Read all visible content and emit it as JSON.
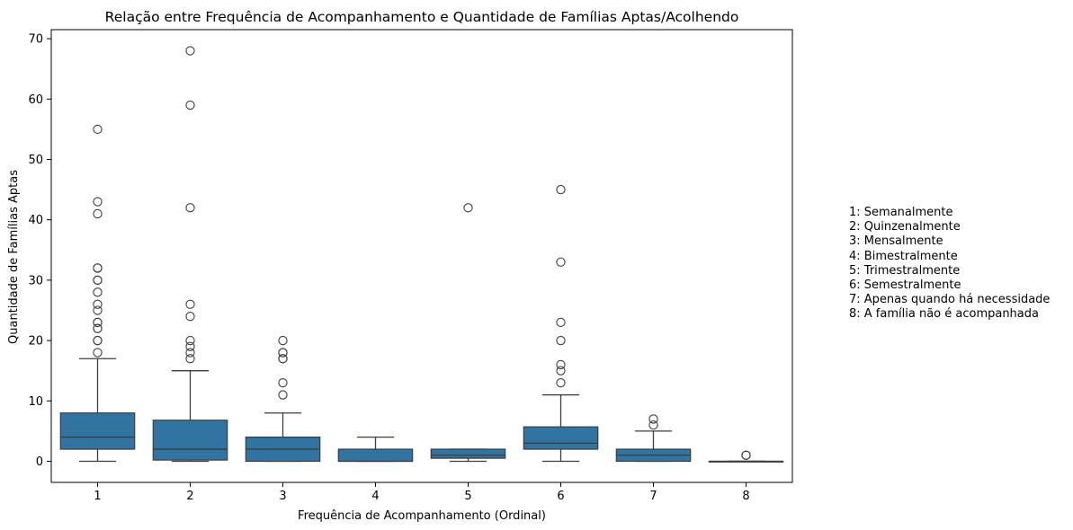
{
  "chart_data": {
    "type": "boxplot",
    "title": "Relação entre Frequência de Acompanhamento e Quantidade de Famílias Aptas/Acolhendo",
    "xlabel": "Frequência de Acompanhamento (Ordinal)",
    "ylabel": "Quantidade de Famílias Aptas",
    "ylim": [
      -3.5,
      71.5
    ],
    "yticks": [
      0,
      10,
      20,
      30,
      40,
      50,
      60,
      70
    ],
    "categories": [
      "1",
      "2",
      "3",
      "4",
      "5",
      "6",
      "7",
      "8"
    ],
    "box_color": "#3274a1",
    "line_color": "#3d3d3d",
    "boxes": [
      {
        "category": "1",
        "whisker_low": 0,
        "q1": 2,
        "median": 4,
        "q3": 8,
        "whisker_high": 17,
        "outliers": [
          18,
          20,
          20,
          22,
          22,
          23,
          23,
          25,
          26,
          28,
          30,
          30,
          32,
          32,
          41,
          43,
          55
        ]
      },
      {
        "category": "2",
        "whisker_low": 0,
        "q1": 0.2,
        "median": 2,
        "q3": 6.8,
        "whisker_high": 15,
        "outliers": [
          17,
          18,
          19,
          20,
          24,
          26,
          42,
          59,
          68
        ]
      },
      {
        "category": "3",
        "whisker_low": 0,
        "q1": 0,
        "median": 2,
        "q3": 4,
        "whisker_high": 8,
        "outliers": [
          11,
          13,
          17,
          17,
          18,
          18,
          20
        ]
      },
      {
        "category": "4",
        "whisker_low": 0,
        "q1": 0,
        "median": 0,
        "q3": 2,
        "whisker_high": 4,
        "outliers": []
      },
      {
        "category": "5",
        "whisker_low": 0,
        "q1": 0.5,
        "median": 1,
        "q3": 2,
        "whisker_high": 2,
        "outliers": [
          42
        ]
      },
      {
        "category": "6",
        "whisker_low": 0,
        "q1": 2,
        "median": 3,
        "q3": 5.7,
        "whisker_high": 11,
        "outliers": [
          13,
          15,
          16,
          20,
          23,
          33,
          45
        ]
      },
      {
        "category": "7",
        "whisker_low": 0,
        "q1": 0,
        "median": 1,
        "q3": 2,
        "whisker_high": 5,
        "outliers": [
          6,
          7
        ]
      },
      {
        "category": "8",
        "whisker_low": 0,
        "q1": 0,
        "median": 0,
        "q3": 0,
        "whisker_high": 0,
        "outliers": [
          1,
          1
        ]
      }
    ],
    "legend_text": [
      "1: Semanalmente",
      "2: Quinzenalmente",
      "3: Mensalmente",
      "4: Bimestralmente",
      "5: Trimestralmente",
      "6: Semestralmente",
      "7: Apenas quando há necessidade",
      "8: A família não é acompanhada"
    ]
  }
}
